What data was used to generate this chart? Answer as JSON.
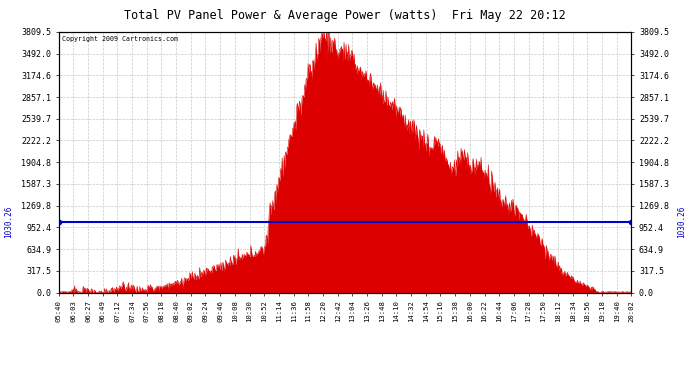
{
  "title": "Total PV Panel Power & Average Power (watts)  Fri May 22 20:12",
  "copyright": "Copyright 2009 Cartronics.com",
  "yticks": [
    0.0,
    317.5,
    634.9,
    952.4,
    1269.8,
    1587.3,
    1904.8,
    2222.2,
    2539.7,
    2857.1,
    3174.6,
    3492.0,
    3809.5
  ],
  "ymax": 3809.5,
  "average_power": 1030.26,
  "fill_color": "#dd0000",
  "line_color": "#0000cc",
  "bg_color": "#ffffff",
  "grid_color": "#bbbbbb",
  "title_color": "#000000",
  "copyright_color": "#000000",
  "xtick_labels": [
    "05:40",
    "06:03",
    "06:27",
    "06:49",
    "07:12",
    "07:34",
    "07:56",
    "08:18",
    "08:40",
    "09:02",
    "09:24",
    "09:46",
    "10:08",
    "10:30",
    "10:52",
    "11:14",
    "11:36",
    "11:58",
    "12:20",
    "12:42",
    "13:04",
    "13:26",
    "13:48",
    "14:10",
    "14:32",
    "14:54",
    "15:16",
    "15:38",
    "16:00",
    "16:22",
    "16:44",
    "17:06",
    "17:28",
    "17:50",
    "18:12",
    "18:34",
    "18:56",
    "19:18",
    "19:40",
    "20:02"
  ],
  "n_xticks": 40
}
